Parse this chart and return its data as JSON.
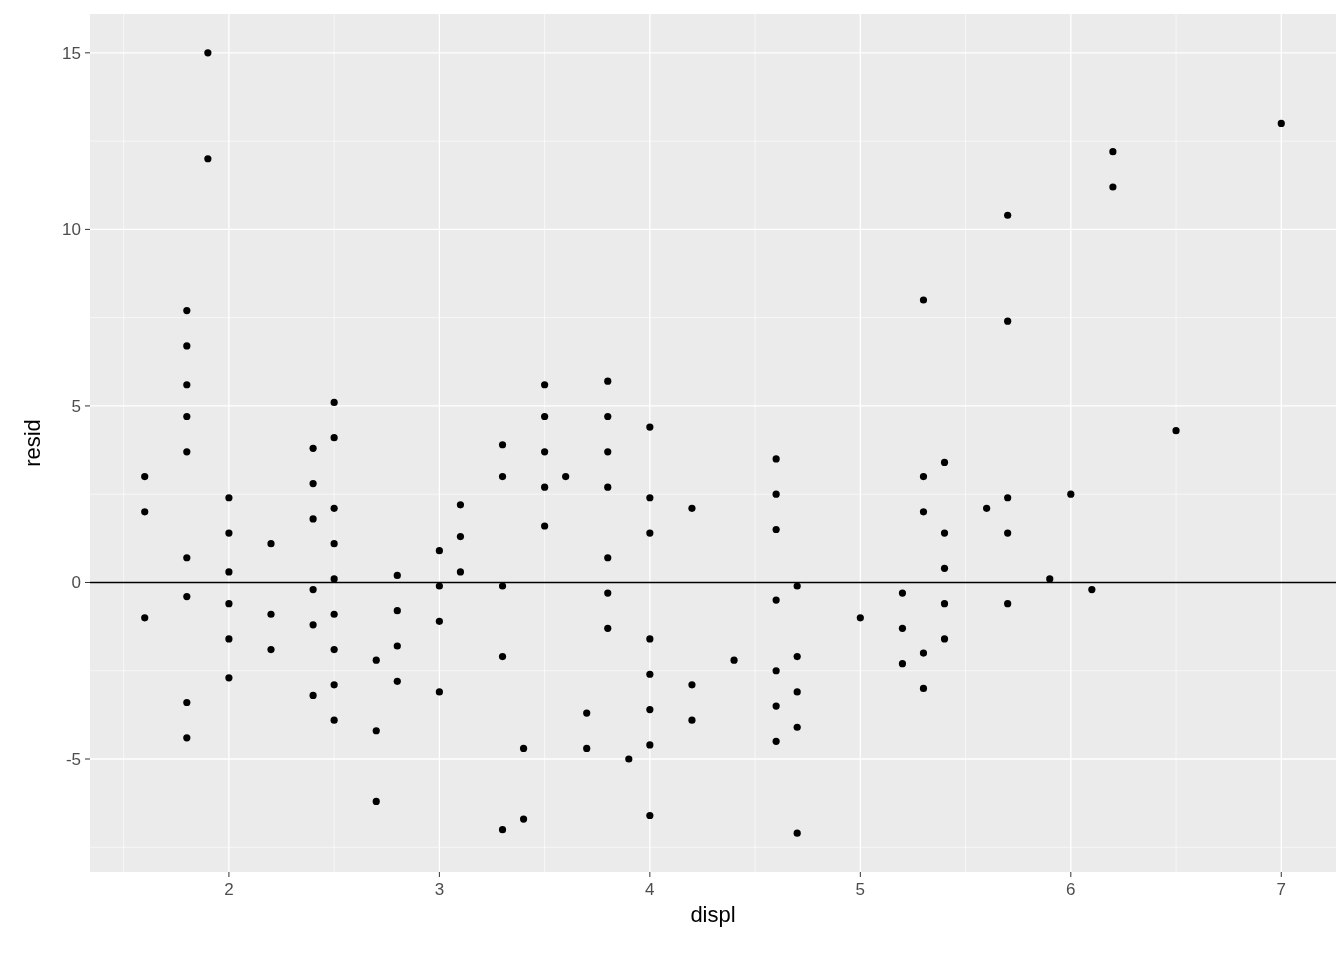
{
  "chart_data": {
    "type": "scatter",
    "xlabel": "displ",
    "ylabel": "resid",
    "xlim": [
      1.34,
      7.26
    ],
    "ylim": [
      -8.2,
      16.1
    ],
    "xticks": [
      2,
      3,
      4,
      5,
      6,
      7
    ],
    "yticks": [
      -5,
      0,
      5,
      10,
      15
    ],
    "grid": true,
    "marker": "circle",
    "ref_lines": [
      {
        "axis": "y",
        "value": 0,
        "color": "#000000"
      }
    ],
    "series": [
      {
        "color": "#000000",
        "x": [
          1.6,
          1.6,
          1.6,
          1.8,
          1.8,
          1.8,
          1.8,
          1.8,
          1.8,
          1.8,
          1.8,
          1.8,
          1.9,
          1.9,
          2.0,
          2.0,
          2.0,
          2.0,
          2.0,
          2.0,
          2.2,
          2.2,
          2.2,
          2.4,
          2.4,
          2.4,
          2.4,
          2.4,
          2.4,
          2.5,
          2.5,
          2.5,
          2.5,
          2.5,
          2.5,
          2.5,
          2.5,
          2.5,
          2.7,
          2.7,
          2.7,
          2.8,
          2.8,
          2.8,
          2.8,
          3.0,
          3.0,
          3.0,
          3.0,
          3.1,
          3.1,
          3.1,
          3.3,
          3.3,
          3.3,
          3.3,
          3.3,
          3.4,
          3.4,
          3.5,
          3.5,
          3.5,
          3.5,
          3.5,
          3.6,
          3.7,
          3.7,
          3.8,
          3.8,
          3.8,
          3.8,
          3.8,
          3.8,
          3.8,
          3.9,
          4.0,
          4.0,
          4.0,
          4.0,
          4.0,
          4.0,
          4.0,
          4.0,
          4.2,
          4.2,
          4.2,
          4.4,
          4.6,
          4.6,
          4.6,
          4.6,
          4.6,
          4.6,
          4.6,
          4.7,
          4.7,
          4.7,
          4.7,
          4.7,
          5.0,
          5.2,
          5.2,
          5.2,
          5.3,
          5.3,
          5.3,
          5.3,
          5.3,
          5.4,
          5.4,
          5.4,
          5.4,
          5.4,
          5.6,
          5.7,
          5.7,
          5.7,
          5.7,
          5.7,
          5.9,
          6.0,
          6.1,
          6.2,
          6.2,
          6.5,
          7.0
        ],
        "values": [
          3.0,
          2.0,
          -1.0,
          7.7,
          6.7,
          5.6,
          4.7,
          3.7,
          0.7,
          -0.4,
          -3.4,
          -4.4,
          15.0,
          12.0,
          2.4,
          1.4,
          0.3,
          -0.6,
          -1.6,
          -2.7,
          1.1,
          -0.9,
          -1.9,
          3.8,
          2.8,
          1.8,
          -0.2,
          -1.2,
          -3.2,
          5.1,
          4.1,
          2.1,
          1.1,
          0.1,
          -0.9,
          -1.9,
          -2.9,
          -3.9,
          -2.2,
          -4.2,
          -6.2,
          0.2,
          -0.8,
          -1.8,
          -2.8,
          0.9,
          -0.1,
          -1.1,
          -3.1,
          2.2,
          1.3,
          0.3,
          3.9,
          3.0,
          -0.1,
          -2.1,
          -7.0,
          -4.7,
          -6.7,
          5.6,
          4.7,
          3.7,
          2.7,
          1.6,
          3.0,
          -3.7,
          -4.7,
          5.7,
          4.7,
          3.7,
          2.7,
          0.7,
          -0.3,
          -1.3,
          -5.0,
          4.4,
          2.4,
          1.4,
          -1.6,
          -2.6,
          -3.6,
          -4.6,
          -6.6,
          2.1,
          -2.9,
          -3.9,
          -2.2,
          3.5,
          2.5,
          1.5,
          -0.5,
          -2.5,
          -3.5,
          -4.5,
          -0.1,
          -2.1,
          -3.1,
          -4.1,
          -7.1,
          -1.0,
          -0.3,
          -1.3,
          -2.3,
          8.0,
          3.0,
          2.0,
          -2.0,
          -3.0,
          3.4,
          1.4,
          0.4,
          -0.6,
          -1.6,
          2.1,
          10.4,
          7.4,
          2.4,
          1.4,
          -0.6,
          0.1,
          2.5,
          -0.2,
          12.2,
          11.2,
          4.3,
          13.0
        ]
      }
    ]
  }
}
